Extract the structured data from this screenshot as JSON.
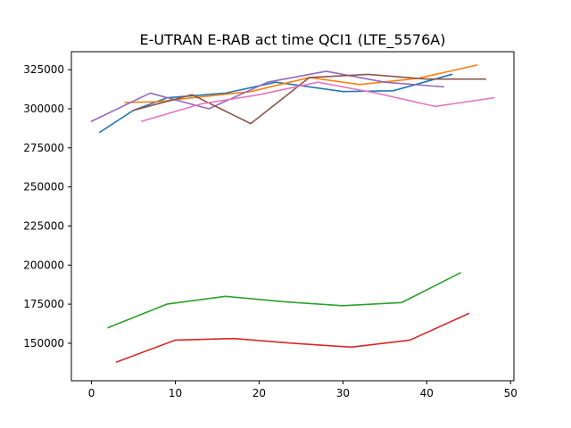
{
  "chart_data": {
    "type": "line",
    "title": "E-UTRAN E-RAB act time QCI1 (LTE_5576A)",
    "xlabel": "",
    "ylabel": "",
    "xlim": [
      -2.4,
      50.4
    ],
    "ylim": [
      126000,
      336500
    ],
    "xticks": [
      0,
      10,
      20,
      30,
      40,
      50
    ],
    "yticks": [
      150000,
      175000,
      200000,
      225000,
      250000,
      275000,
      300000,
      325000
    ],
    "ytick_labels": [
      "150000",
      "175000",
      "200000",
      "225000",
      "250000",
      "275000",
      "300000",
      "325000"
    ],
    "grid": false,
    "series": [
      {
        "color": "#1f77b4",
        "x": [
          1,
          5,
          9,
          16,
          22,
          30,
          36,
          43
        ],
        "y": [
          285000,
          299000,
          307000,
          310000,
          317000,
          311000,
          311500,
          322000
        ]
      },
      {
        "color": "#ff7f0e",
        "x": [
          4,
          8,
          12,
          19,
          26,
          32,
          39,
          46
        ],
        "y": [
          304000,
          304500,
          307000,
          311000,
          320000,
          315500,
          319500,
          328000
        ]
      },
      {
        "color": "#2ca02c",
        "x": [
          2,
          9,
          16,
          23,
          30,
          37,
          44
        ],
        "y": [
          160000,
          175000,
          180000,
          176500,
          174000,
          176000,
          195000
        ]
      },
      {
        "color": "#d62728",
        "x": [
          3,
          10,
          17,
          24,
          31,
          38,
          45
        ],
        "y": [
          138000,
          152000,
          153000,
          150000,
          147500,
          152000,
          169000
        ]
      },
      {
        "color": "#9467bd",
        "x": [
          0,
          7,
          14,
          21,
          28,
          35,
          42
        ],
        "y": [
          292000,
          310000,
          300000,
          317000,
          324000,
          317000,
          314000
        ]
      },
      {
        "color": "#8c564b",
        "x": [
          5,
          12,
          19,
          26,
          33,
          40,
          47
        ],
        "y": [
          299000,
          309000,
          290500,
          320000,
          322000,
          319000,
          319000
        ]
      },
      {
        "color": "#e377c2",
        "x": [
          6,
          13,
          20,
          27,
          34,
          41,
          48
        ],
        "y": [
          292000,
          303000,
          309000,
          317000,
          310000,
          301500,
          307000
        ]
      }
    ]
  }
}
